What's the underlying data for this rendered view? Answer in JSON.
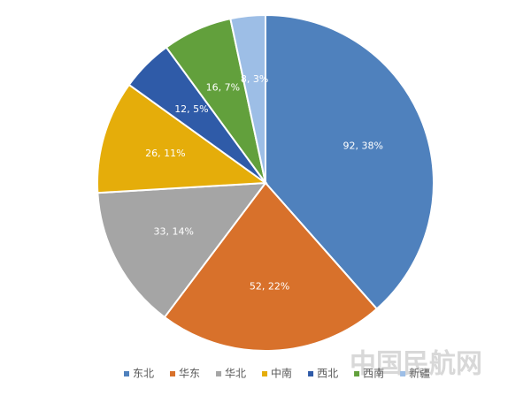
{
  "chart_data": {
    "type": "pie",
    "categories": [
      "东北",
      "华东",
      "华北",
      "中南",
      "西北",
      "西南",
      "新疆"
    ],
    "values": [
      92,
      52,
      33,
      26,
      12,
      16,
      8
    ],
    "value_labels": [
      "92, 38%",
      "52, 22%",
      "33, 14%",
      "26, 11%",
      "12, 5%",
      "16, 7%",
      "8, 3%"
    ],
    "colors": [
      "#4f81bd",
      "#d8712b",
      "#a5a5a5",
      "#e5ad0a",
      "#2f5ba8",
      "#62a03c",
      "#9dbee6"
    ],
    "legend": "bottom"
  },
  "watermark": "中国民航网"
}
